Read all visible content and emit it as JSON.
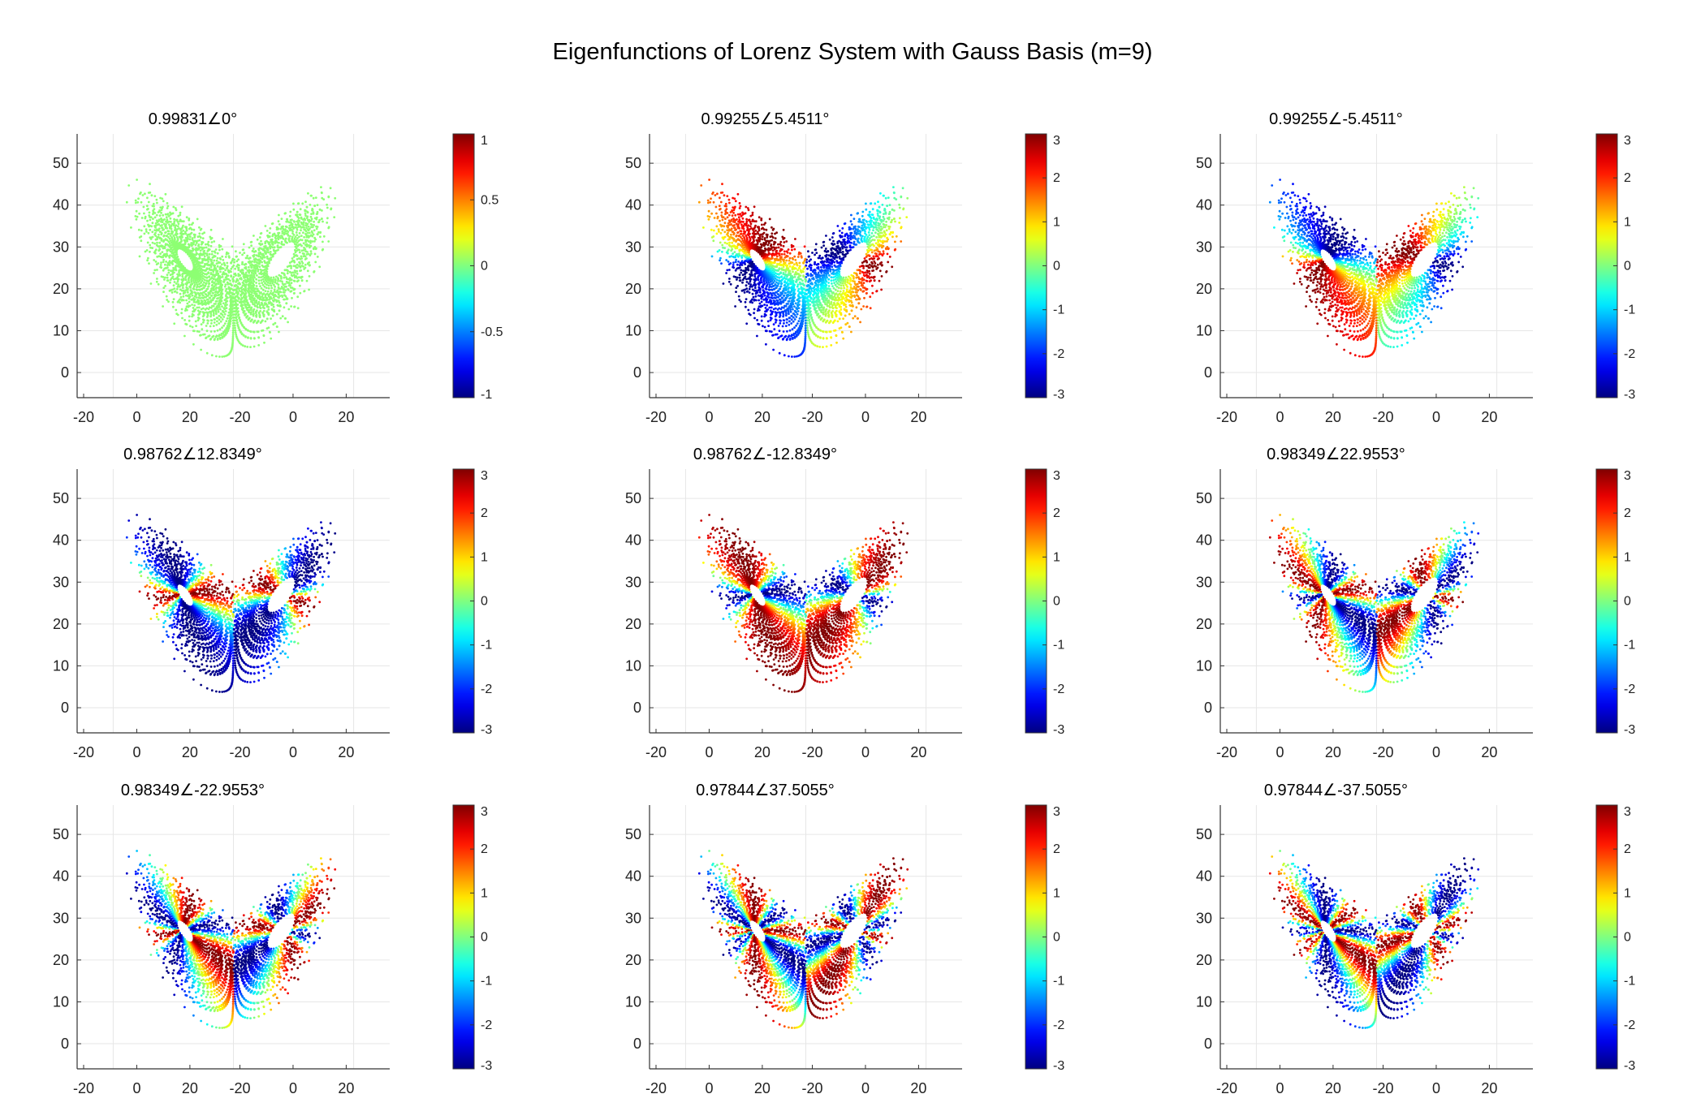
{
  "title": "Eigenfunctions of Lorenz System with Gauss Basis (m=9)",
  "chart_data": [
    {
      "type": "scatter",
      "title": "0.99831∠0°",
      "xticks": [
        "-20",
        "0",
        "20",
        "-20",
        "0",
        "20"
      ],
      "yticks": [
        "0",
        "10",
        "20",
        "30",
        "40",
        "50"
      ],
      "colorbar_ticks": [
        "-1",
        "-0.5",
        "0",
        "0.5",
        "1"
      ],
      "clim": [
        -1,
        1
      ],
      "colormap": "jet",
      "mode": 0,
      "k": 0,
      "phase": 0
    },
    {
      "type": "scatter",
      "title": "0.99255∠5.4511°",
      "xticks": [
        "-20",
        "0",
        "20",
        "-20",
        "0",
        "20"
      ],
      "yticks": [
        "0",
        "10",
        "20",
        "30",
        "40",
        "50"
      ],
      "colorbar_ticks": [
        "-3",
        "-2",
        "-1",
        "0",
        "1",
        "2",
        "3"
      ],
      "clim": [
        -3,
        3
      ],
      "colormap": "jet",
      "mode": 1,
      "k": 1,
      "phase": 0.5
    },
    {
      "type": "scatter",
      "title": "0.99255∠-5.4511°",
      "xticks": [
        "-20",
        "0",
        "20",
        "-20",
        "0",
        "20"
      ],
      "yticks": [
        "0",
        "10",
        "20",
        "30",
        "40",
        "50"
      ],
      "colorbar_ticks": [
        "-3",
        "-2",
        "-1",
        "0",
        "1",
        "2",
        "3"
      ],
      "clim": [
        -3,
        3
      ],
      "colormap": "jet",
      "mode": 1,
      "k": 1,
      "phase": 3.6
    },
    {
      "type": "scatter",
      "title": "0.98762∠12.8349°",
      "xticks": [
        "-20",
        "0",
        "20",
        "-20",
        "0",
        "20"
      ],
      "yticks": [
        "0",
        "10",
        "20",
        "30",
        "40",
        "50"
      ],
      "colorbar_ticks": [
        "-3",
        "-2",
        "-1",
        "0",
        "1",
        "2",
        "3"
      ],
      "clim": [
        -3,
        3
      ],
      "colormap": "jet",
      "mode": 1,
      "k": 2,
      "phase": 1.2
    },
    {
      "type": "scatter",
      "title": "0.98762∠-12.8349°",
      "xticks": [
        "-20",
        "0",
        "20",
        "-20",
        "0",
        "20"
      ],
      "yticks": [
        "0",
        "10",
        "20",
        "30",
        "40",
        "50"
      ],
      "colorbar_ticks": [
        "-3",
        "-2",
        "-1",
        "0",
        "1",
        "2",
        "3"
      ],
      "clim": [
        -3,
        3
      ],
      "colormap": "jet",
      "mode": 1,
      "k": 2,
      "phase": 4.3
    },
    {
      "type": "scatter",
      "title": "0.98349∠22.9553°",
      "xticks": [
        "-20",
        "0",
        "20",
        "-20",
        "0",
        "20"
      ],
      "yticks": [
        "0",
        "10",
        "20",
        "30",
        "40",
        "50"
      ],
      "colorbar_ticks": [
        "-3",
        "-2",
        "-1",
        "0",
        "1",
        "2",
        "3"
      ],
      "clim": [
        -3,
        3
      ],
      "colormap": "jet",
      "mode": 1,
      "k": 3,
      "phase": 0.8
    },
    {
      "type": "scatter",
      "title": "0.98349∠-22.9553°",
      "xticks": [
        "-20",
        "0",
        "20",
        "-20",
        "0",
        "20"
      ],
      "yticks": [
        "0",
        "10",
        "20",
        "30",
        "40",
        "50"
      ],
      "colorbar_ticks": [
        "-3",
        "-2",
        "-1",
        "0",
        "1",
        "2",
        "3"
      ],
      "clim": [
        -3,
        3
      ],
      "colormap": "jet",
      "mode": 1,
      "k": 3,
      "phase": 3.9
    },
    {
      "type": "scatter",
      "title": "0.97844∠37.5055°",
      "xticks": [
        "-20",
        "0",
        "20",
        "-20",
        "0",
        "20"
      ],
      "yticks": [
        "0",
        "10",
        "20",
        "30",
        "40",
        "50"
      ],
      "colorbar_ticks": [
        "-3",
        "-2",
        "-1",
        "0",
        "1",
        "2",
        "3"
      ],
      "clim": [
        -3,
        3
      ],
      "colormap": "jet",
      "mode": 1,
      "k": 4,
      "phase": 1.6
    },
    {
      "type": "scatter",
      "title": "0.97844∠-37.5055°",
      "xticks": [
        "-20",
        "0",
        "20",
        "-20",
        "0",
        "20"
      ],
      "yticks": [
        "0",
        "10",
        "20",
        "30",
        "40",
        "50"
      ],
      "colorbar_ticks": [
        "-3",
        "-2",
        "-1",
        "0",
        "1",
        "2",
        "3"
      ],
      "clim": [
        -3,
        3
      ],
      "colormap": "jet",
      "mode": 1,
      "k": 4,
      "phase": 4.7
    }
  ]
}
